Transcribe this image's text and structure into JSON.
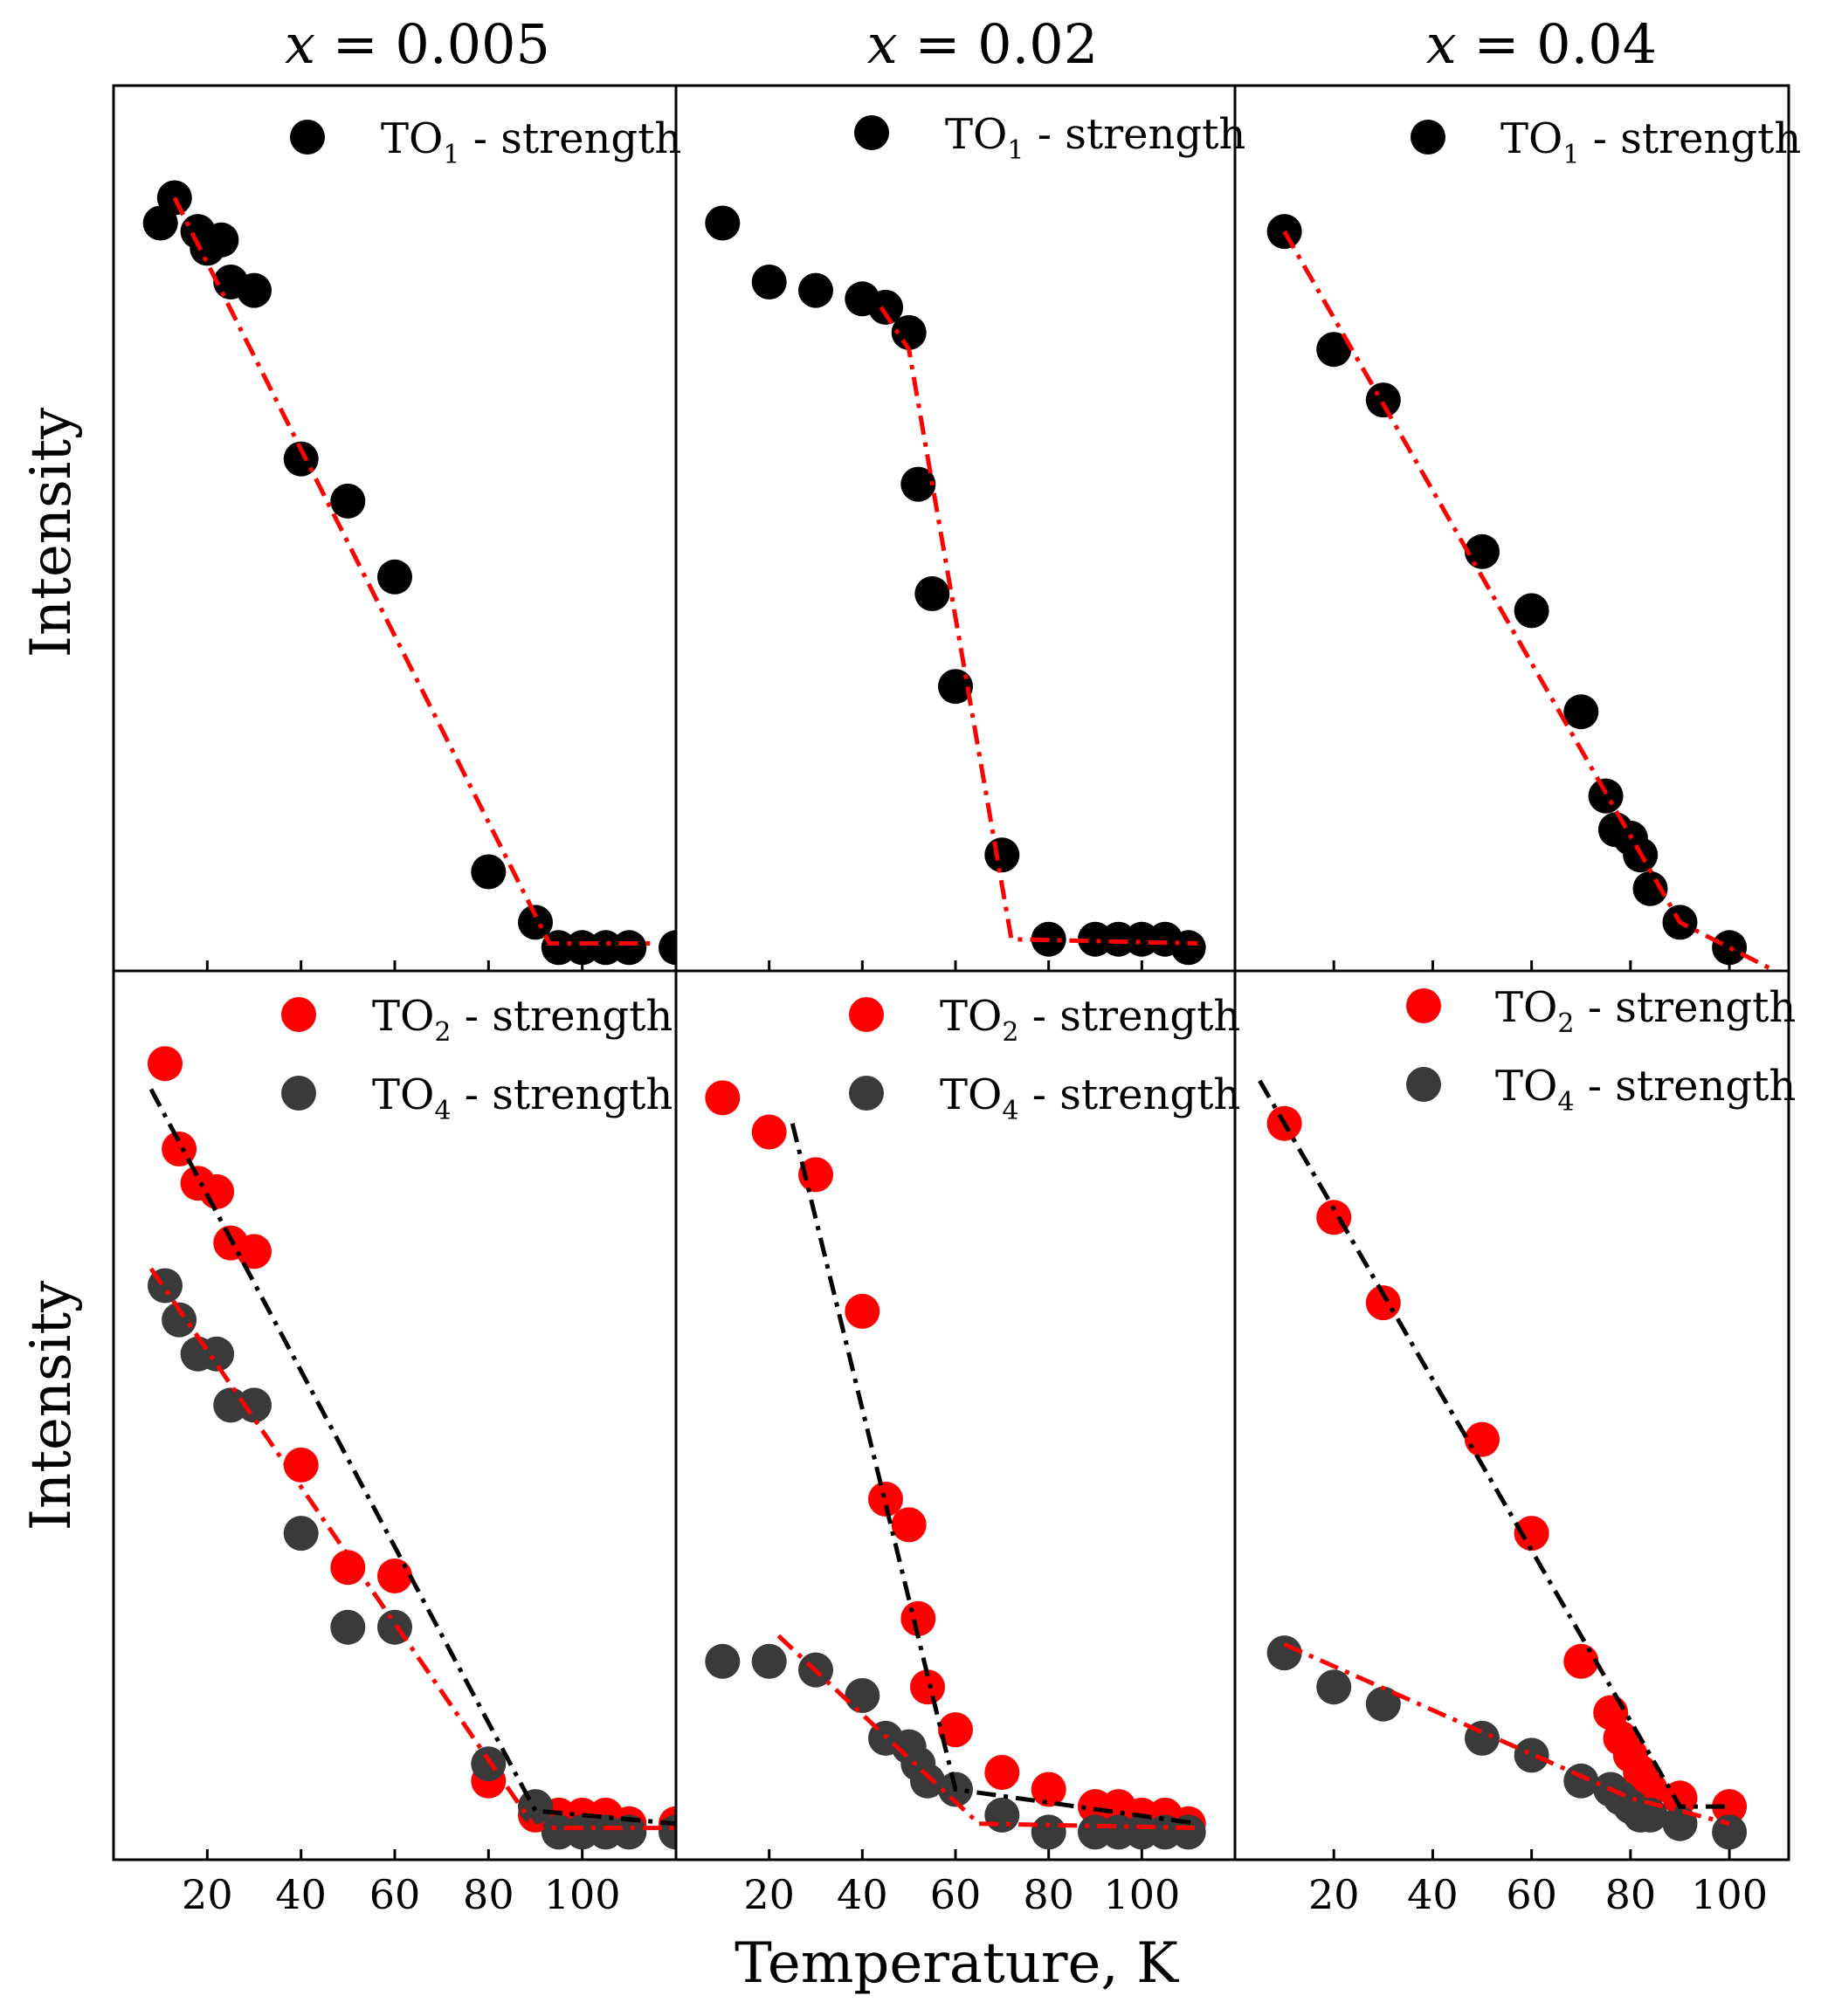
{
  "figure": {
    "xlabel": "Temperature, K",
    "ylabel": "Intensity",
    "column_titles": [
      {
        "var": "x",
        "eq": " = ",
        "value": "0.005"
      },
      {
        "var": "x",
        "eq": " = ",
        "value": "0.02"
      },
      {
        "var": "x",
        "eq": " = ",
        "value": "0.04"
      }
    ],
    "x_tick_labels": [
      "20",
      "40",
      "60",
      "80",
      "100"
    ],
    "colors": {
      "red": "#ff0000",
      "black": "#000000",
      "dark_gray": "#3a3a3a"
    }
  },
  "legend_labels": {
    "to1": {
      "base": "TO",
      "sub": "1",
      "suffix": " - strength"
    },
    "to2": {
      "base": "TO",
      "sub": "2",
      "suffix": " - strength"
    },
    "to4": {
      "base": "TO",
      "sub": "4",
      "suffix": " - strength"
    }
  },
  "chart_data": [
    {
      "type": "scatter",
      "panel": "top-left",
      "title": "x = 0.005",
      "xlim": [
        0,
        120
      ],
      "ylim": [
        0,
        1
      ],
      "legend": "top-right",
      "series": [
        {
          "name": "TO1 - strength",
          "color": "#000000",
          "x": [
            10,
            13,
            18,
            20,
            23,
            25,
            30,
            40,
            50,
            60,
            80,
            90,
            95,
            100,
            105,
            110,
            120
          ],
          "y": [
            0.87,
            0.9,
            0.86,
            0.84,
            0.85,
            0.8,
            0.79,
            0.59,
            0.54,
            0.45,
            0.1,
            0.04,
            0.01,
            0.01,
            0.01,
            0.01,
            0.01
          ]
        }
      ],
      "fits": [
        {
          "color": "#ff0000",
          "x": [
            13,
            93,
            115
          ],
          "y": [
            0.9,
            0.015,
            0.015
          ]
        }
      ]
    },
    {
      "type": "scatter",
      "panel": "top-middle",
      "title": "x = 0.02",
      "xlim": [
        0,
        120
      ],
      "ylim": [
        0,
        1
      ],
      "legend": "top-right",
      "series": [
        {
          "name": "TO1 - strength",
          "color": "#000000",
          "x": [
            10,
            20,
            30,
            40,
            45,
            50,
            52,
            55,
            60,
            70,
            80,
            90,
            95,
            100,
            105,
            110
          ],
          "y": [
            0.87,
            0.8,
            0.79,
            0.78,
            0.77,
            0.74,
            0.56,
            0.43,
            0.32,
            0.12,
            0.02,
            0.02,
            0.02,
            0.02,
            0.02,
            0.01
          ]
        }
      ],
      "fits": [
        {
          "color": "#ff0000",
          "x": [
            44,
            50,
            72,
            112
          ],
          "y": [
            0.77,
            0.72,
            0.02,
            0.015
          ]
        }
      ]
    },
    {
      "type": "scatter",
      "panel": "top-right",
      "title": "x = 0.04",
      "xlim": [
        0,
        112
      ],
      "ylim": [
        0,
        1
      ],
      "legend": "top-right",
      "series": [
        {
          "name": "TO1 - strength",
          "color": "#000000",
          "x": [
            10,
            20,
            30,
            50,
            60,
            70,
            75,
            77,
            80,
            82,
            84,
            90,
            100
          ],
          "y": [
            0.86,
            0.72,
            0.66,
            0.48,
            0.41,
            0.29,
            0.19,
            0.15,
            0.14,
            0.12,
            0.08,
            0.04,
            0.01
          ]
        }
      ],
      "fits": [
        {
          "color": "#ff0000",
          "x": [
            10,
            90,
            110
          ],
          "y": [
            0.86,
            0.04,
            -0.02
          ]
        }
      ]
    },
    {
      "type": "scatter",
      "panel": "bottom-left",
      "xlabel": "",
      "ylabel": "Intensity",
      "xlim": [
        0,
        120
      ],
      "ylim": [
        0,
        1
      ],
      "legend": "top-right",
      "series": [
        {
          "name": "TO2 - strength",
          "color": "#ff0000",
          "x": [
            11,
            14,
            18,
            22,
            25,
            30,
            40,
            50,
            60,
            80,
            90,
            95,
            100,
            105,
            110,
            120
          ],
          "y": [
            0.92,
            0.82,
            0.78,
            0.77,
            0.71,
            0.7,
            0.45,
            0.33,
            0.32,
            0.08,
            0.04,
            0.04,
            0.04,
            0.04,
            0.03,
            0.03
          ]
        },
        {
          "name": "TO4 - strength",
          "color": "#3a3a3a",
          "x": [
            11,
            14,
            18,
            22,
            25,
            30,
            40,
            50,
            60,
            80,
            90,
            95,
            100,
            105,
            110,
            120
          ],
          "y": [
            0.66,
            0.62,
            0.58,
            0.58,
            0.52,
            0.52,
            0.37,
            0.26,
            0.26,
            0.1,
            0.05,
            0.02,
            0.02,
            0.02,
            0.02,
            0.02
          ]
        }
      ],
      "fits": [
        {
          "color": "#000000",
          "x": [
            8,
            90,
            120
          ],
          "y": [
            0.89,
            0.045,
            0.03
          ]
        },
        {
          "color": "#ff0000",
          "x": [
            8,
            90,
            120
          ],
          "y": [
            0.68,
            0.025,
            0.025
          ]
        }
      ]
    },
    {
      "type": "scatter",
      "panel": "bottom-middle",
      "xlim": [
        0,
        120
      ],
      "ylim": [
        0,
        1
      ],
      "legend": "top-right",
      "series": [
        {
          "name": "TO2 - strength",
          "color": "#ff0000",
          "x": [
            10,
            20,
            30,
            40,
            45,
            50,
            52,
            54,
            60,
            70,
            80,
            90,
            95,
            100,
            105,
            110
          ],
          "y": [
            0.88,
            0.84,
            0.79,
            0.63,
            0.41,
            0.38,
            0.27,
            0.19,
            0.14,
            0.09,
            0.07,
            0.05,
            0.05,
            0.04,
            0.04,
            0.03
          ]
        },
        {
          "name": "TO4 - strength",
          "color": "#3a3a3a",
          "x": [
            10,
            20,
            30,
            40,
            45,
            50,
            52,
            54,
            60,
            70,
            80,
            90,
            95,
            100,
            105,
            110
          ],
          "y": [
            0.22,
            0.22,
            0.21,
            0.18,
            0.13,
            0.12,
            0.1,
            0.08,
            0.07,
            0.04,
            0.02,
            0.02,
            0.02,
            0.02,
            0.02,
            0.02
          ]
        }
      ],
      "fits": [
        {
          "color": "#000000",
          "x": [
            25,
            60,
            112
          ],
          "y": [
            0.85,
            0.07,
            0.03
          ]
        },
        {
          "color": "#ff0000",
          "x": [
            22,
            65,
            112
          ],
          "y": [
            0.25,
            0.03,
            0.025
          ]
        }
      ]
    },
    {
      "type": "scatter",
      "panel": "bottom-right",
      "xlim": [
        0,
        112
      ],
      "ylim": [
        0,
        1
      ],
      "legend": "top-right",
      "series": [
        {
          "name": "TO2 - strength",
          "color": "#ff0000",
          "x": [
            10,
            20,
            30,
            50,
            60,
            70,
            76,
            78,
            80,
            82,
            84,
            90,
            100
          ],
          "y": [
            0.85,
            0.74,
            0.64,
            0.48,
            0.37,
            0.22,
            0.16,
            0.13,
            0.11,
            0.09,
            0.07,
            0.06,
            0.05
          ]
        },
        {
          "name": "TO4 - strength",
          "color": "#3a3a3a",
          "x": [
            10,
            20,
            30,
            50,
            60,
            70,
            76,
            78,
            80,
            82,
            84,
            90,
            100
          ],
          "y": [
            0.23,
            0.19,
            0.17,
            0.13,
            0.11,
            0.08,
            0.07,
            0.06,
            0.05,
            0.04,
            0.04,
            0.03,
            0.02
          ]
        }
      ],
      "fits": [
        {
          "color": "#000000",
          "x": [
            5,
            90,
            100
          ],
          "y": [
            0.9,
            0.05,
            0.05
          ]
        },
        {
          "color": "#ff0000",
          "x": [
            10,
            80,
            100
          ],
          "y": [
            0.24,
            0.06,
            0.03
          ]
        }
      ]
    }
  ]
}
